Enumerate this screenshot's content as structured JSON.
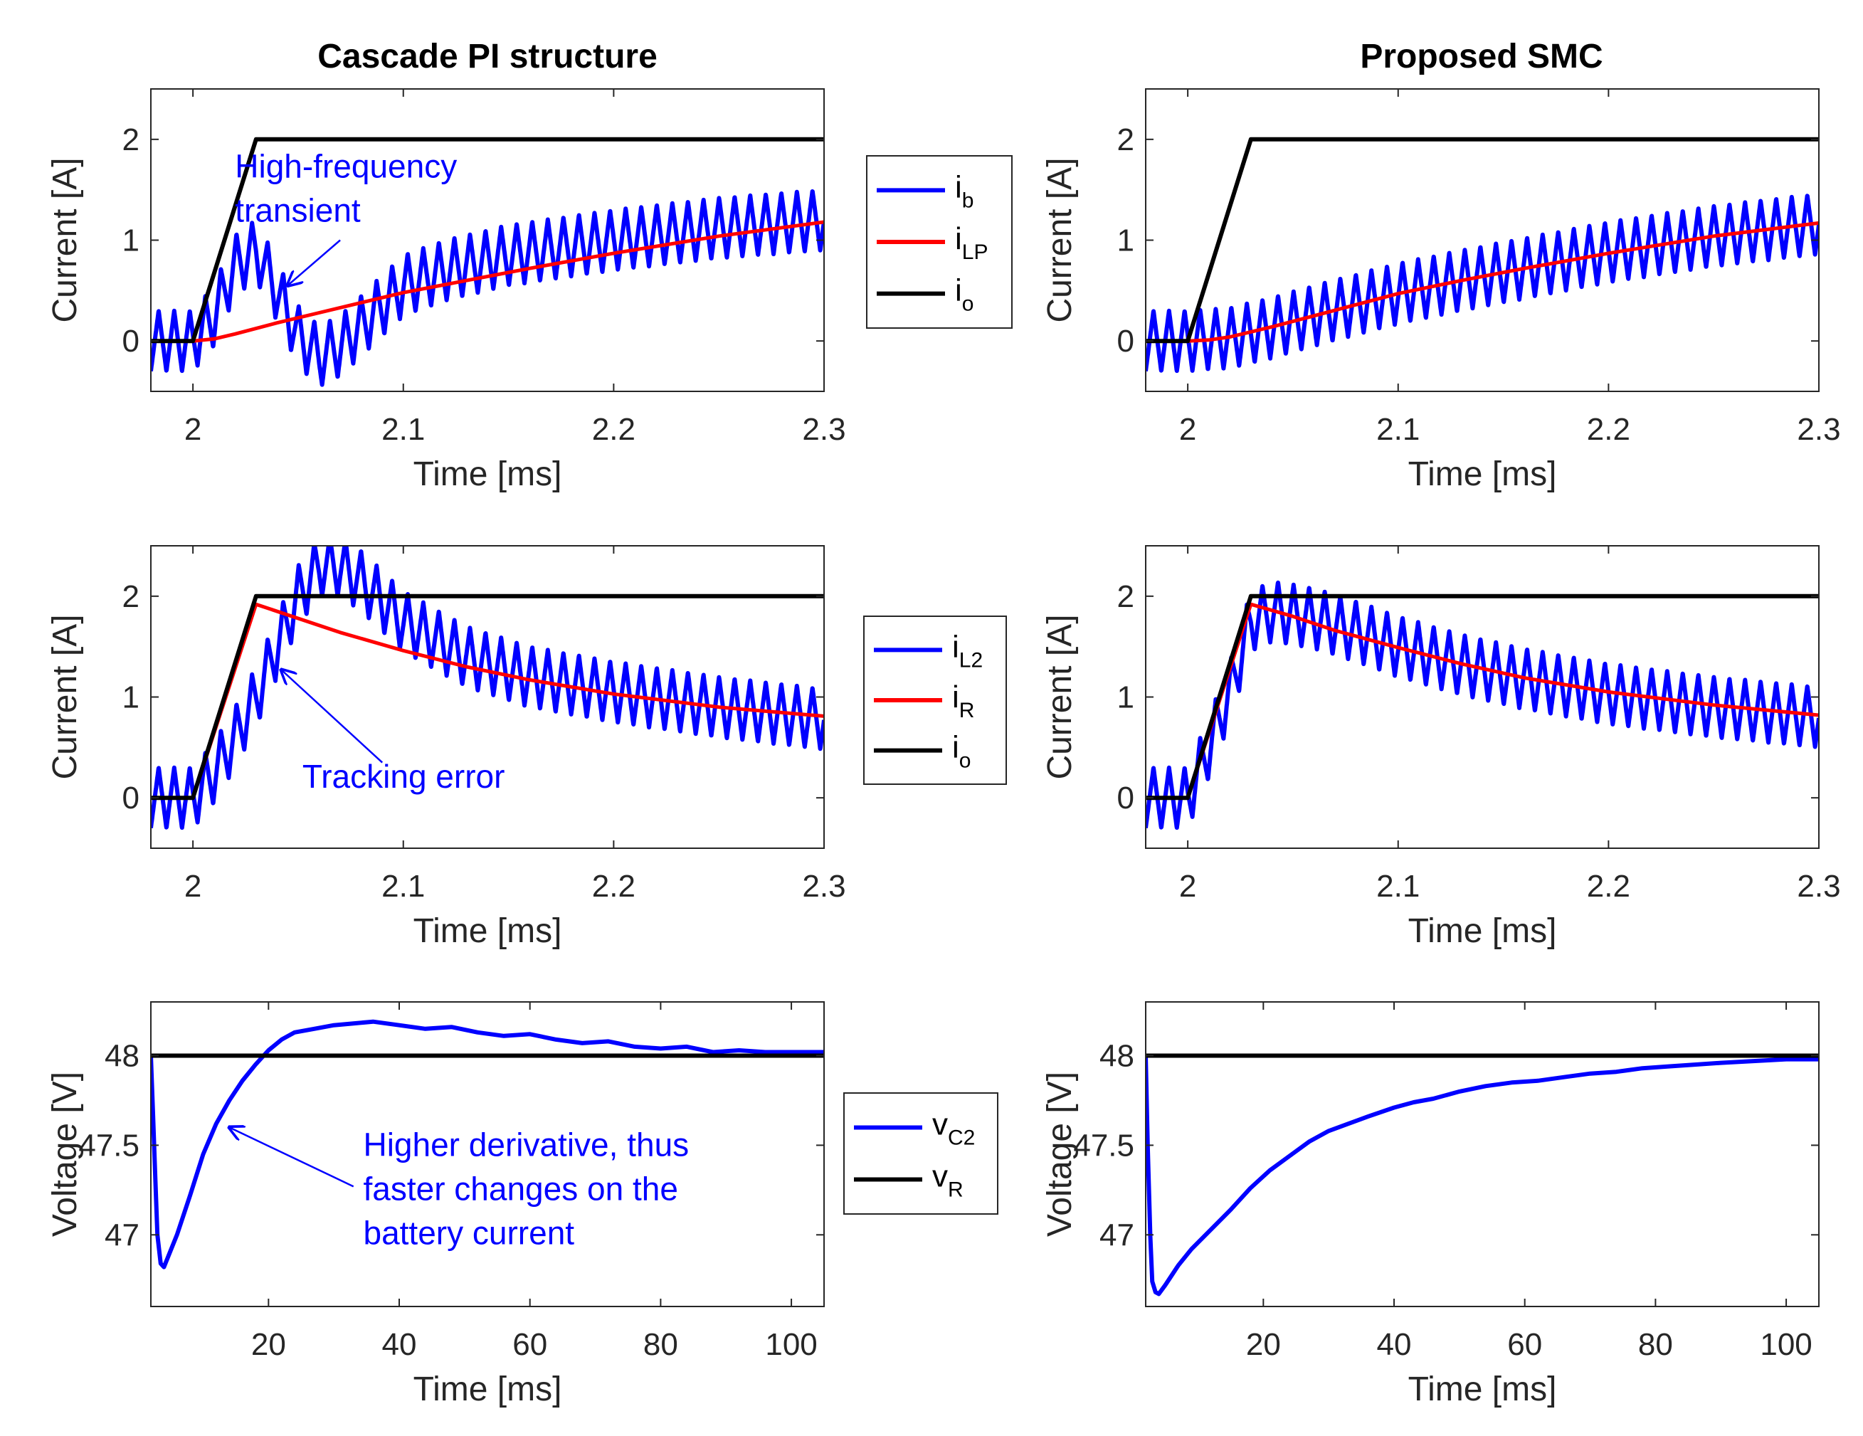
{
  "figure": {
    "title_left": "Cascade PI structure",
    "title_right": "Proposed SMC"
  },
  "colors": {
    "blue": "#0000ff",
    "red": "#ff0000",
    "black": "#000000",
    "axis": "#262626"
  },
  "chart_data": [
    {
      "id": "pi-battery",
      "type": "line",
      "panel": "top-left",
      "xlabel": "Time [ms]",
      "ylabel": "Current [A]",
      "xlim": [
        1.98,
        2.3
      ],
      "ylim": [
        -0.5,
        2.5
      ],
      "xticks": [
        2,
        2.1,
        2.2,
        2.3
      ],
      "xtick_labels": [
        "2",
        "2.1",
        "2.2",
        "2.3"
      ],
      "yticks": [
        0,
        1,
        2
      ],
      "ytick_labels": [
        "0",
        "1",
        "2"
      ],
      "series": [
        {
          "name": "i_b",
          "color": "blue",
          "kind": "ripple",
          "x": [
            1.98,
            2.0,
            2.01,
            2.02,
            2.03,
            2.04,
            2.05,
            2.06,
            2.07,
            2.08,
            2.09,
            2.1,
            2.12,
            2.15,
            2.2,
            2.25,
            2.3
          ],
          "y": [
            0.0,
            0.0,
            0.25,
            0.75,
            0.9,
            0.5,
            0.05,
            -0.15,
            -0.05,
            0.15,
            0.35,
            0.55,
            0.7,
            0.85,
            1.0,
            1.12,
            1.2
          ],
          "period": 0.0074,
          "amplitude": 0.3
        },
        {
          "name": "i_LP",
          "color": "red",
          "x": [
            2.0,
            2.01,
            2.02,
            2.04,
            2.06,
            2.08,
            2.1,
            2.13,
            2.16,
            2.2,
            2.25,
            2.3
          ],
          "y": [
            0.0,
            0.02,
            0.07,
            0.18,
            0.28,
            0.38,
            0.48,
            0.6,
            0.72,
            0.87,
            1.04,
            1.18
          ]
        },
        {
          "name": "i_o",
          "color": "black",
          "x": [
            1.98,
            2.0,
            2.03,
            2.3
          ],
          "y": [
            0,
            0,
            2,
            2
          ]
        }
      ],
      "legend": {
        "position": "right",
        "entries": [
          {
            "color": "blue",
            "base": "i",
            "sub": "b"
          },
          {
            "color": "red",
            "base": "i",
            "sub": "LP"
          },
          {
            "color": "black",
            "base": "i",
            "sub": "o"
          }
        ]
      },
      "annotations": [
        {
          "lines": [
            "High-frequency",
            "transient"
          ],
          "text_x": 2.02,
          "text_y": 1.62,
          "arrow_from": [
            2.07,
            1.0
          ],
          "arrow_to": [
            2.045,
            0.55
          ]
        }
      ]
    },
    {
      "id": "pi-inductor",
      "type": "line",
      "panel": "middle-left",
      "xlabel": "Time [ms]",
      "ylabel": "Current [A]",
      "xlim": [
        1.98,
        2.3
      ],
      "ylim": [
        -0.5,
        2.5
      ],
      "xticks": [
        2,
        2.1,
        2.2,
        2.3
      ],
      "xtick_labels": [
        "2",
        "2.1",
        "2.2",
        "2.3"
      ],
      "yticks": [
        0,
        1,
        2
      ],
      "ytick_labels": [
        "0",
        "1",
        "2"
      ],
      "series": [
        {
          "name": "i_L2",
          "color": "blue",
          "kind": "ripple",
          "x": [
            1.98,
            2.0,
            2.01,
            2.02,
            2.03,
            2.04,
            2.05,
            2.06,
            2.07,
            2.08,
            2.1,
            2.13,
            2.16,
            2.2,
            2.25,
            2.3
          ],
          "y": [
            0.0,
            0.0,
            0.25,
            0.6,
            1.0,
            1.5,
            2.0,
            2.3,
            2.3,
            2.15,
            1.75,
            1.4,
            1.2,
            1.05,
            0.9,
            0.78
          ],
          "period": 0.0074,
          "amplitude": 0.3
        },
        {
          "name": "i_R",
          "color": "red",
          "x": [
            2.0,
            2.03,
            2.05,
            2.07,
            2.1,
            2.13,
            2.16,
            2.2,
            2.25,
            2.3
          ],
          "y": [
            0.0,
            1.92,
            1.78,
            1.64,
            1.46,
            1.3,
            1.17,
            1.03,
            0.9,
            0.81
          ]
        },
        {
          "name": "i_o",
          "color": "black",
          "x": [
            1.98,
            2.0,
            2.03,
            2.3
          ],
          "y": [
            0,
            0,
            2,
            2
          ]
        }
      ],
      "legend": {
        "position": "right",
        "entries": [
          {
            "color": "blue",
            "base": "i",
            "sub": "L2"
          },
          {
            "color": "red",
            "base": "i",
            "sub": "R"
          },
          {
            "color": "black",
            "base": "i",
            "sub": "o"
          }
        ]
      },
      "annotations": [
        {
          "lines": [
            "Tracking error"
          ],
          "text_x": 2.052,
          "text_y": 0.1,
          "arrow_from": [
            2.09,
            0.35
          ],
          "arrow_to": [
            2.042,
            1.27
          ]
        }
      ]
    },
    {
      "id": "pi-voltage",
      "type": "line",
      "panel": "bottom-left",
      "xlabel": "Time [ms]",
      "ylabel": "Voltage [V]",
      "xlim": [
        2,
        105
      ],
      "ylim": [
        46.6,
        48.3
      ],
      "xticks": [
        20,
        40,
        60,
        80,
        100
      ],
      "xtick_labels": [
        "20",
        "40",
        "60",
        "80",
        "100"
      ],
      "yticks": [
        47,
        47.5,
        48
      ],
      "ytick_labels": [
        "47",
        "47.5",
        "48"
      ],
      "series": [
        {
          "name": "v_C2",
          "color": "blue",
          "x": [
            2,
            2.3,
            2.7,
            3,
            3.5,
            4,
            6,
            8,
            10,
            12,
            14,
            16,
            18,
            20,
            22,
            24,
            27,
            30,
            33,
            36,
            40,
            44,
            48,
            52,
            56,
            60,
            64,
            68,
            72,
            76,
            80,
            84,
            88,
            92,
            96,
            100,
            105
          ],
          "y": [
            48.0,
            47.7,
            47.3,
            47.0,
            46.84,
            46.82,
            47.0,
            47.22,
            47.45,
            47.62,
            47.75,
            47.86,
            47.95,
            48.03,
            48.09,
            48.13,
            48.15,
            48.17,
            48.18,
            48.19,
            48.17,
            48.15,
            48.16,
            48.13,
            48.11,
            48.12,
            48.09,
            48.07,
            48.08,
            48.05,
            48.04,
            48.05,
            48.02,
            48.03,
            48.02,
            48.02,
            48.02
          ]
        },
        {
          "name": "v_R",
          "color": "black",
          "x": [
            2,
            105
          ],
          "y": [
            48,
            48
          ]
        }
      ],
      "legend": {
        "position": "right",
        "entries": [
          {
            "color": "blue",
            "base": "v",
            "sub": "C2"
          },
          {
            "color": "black",
            "base": "v",
            "sub": "R"
          }
        ]
      },
      "annotations": [
        {
          "lines": [
            "Higher derivative, thus",
            "faster changes on the",
            "battery current"
          ],
          "text_x": 34.5,
          "text_y": 47.44,
          "arrow_from": [
            33,
            47.27
          ],
          "arrow_to": [
            14,
            47.6
          ]
        }
      ]
    },
    {
      "id": "smc-battery",
      "type": "line",
      "panel": "top-right",
      "xlabel": "Time [ms]",
      "ylabel": "Current [A]",
      "xlim": [
        1.98,
        2.3
      ],
      "ylim": [
        -0.5,
        2.5
      ],
      "xticks": [
        2,
        2.1,
        2.2,
        2.3
      ],
      "xtick_labels": [
        "2",
        "2.1",
        "2.2",
        "2.3"
      ],
      "yticks": [
        0,
        1,
        2
      ],
      "ytick_labels": [
        "0",
        "1",
        "2"
      ],
      "series": [
        {
          "name": "i_b",
          "color": "blue",
          "kind": "ripple",
          "x": [
            1.98,
            2.0,
            2.02,
            2.04,
            2.06,
            2.08,
            2.1,
            2.13,
            2.16,
            2.2,
            2.25,
            2.3
          ],
          "y": [
            0.0,
            0.0,
            0.03,
            0.13,
            0.25,
            0.36,
            0.47,
            0.6,
            0.72,
            0.88,
            1.04,
            1.16
          ],
          "period": 0.0074,
          "amplitude": 0.3
        },
        {
          "name": "i_LP",
          "color": "red",
          "x": [
            2.0,
            2.01,
            2.02,
            2.04,
            2.06,
            2.08,
            2.1,
            2.13,
            2.16,
            2.2,
            2.25,
            2.3
          ],
          "y": [
            0.0,
            0.01,
            0.04,
            0.14,
            0.25,
            0.36,
            0.47,
            0.6,
            0.72,
            0.87,
            1.04,
            1.17
          ]
        },
        {
          "name": "i_o",
          "color": "black",
          "x": [
            1.98,
            2.0,
            2.03,
            2.3
          ],
          "y": [
            0,
            0,
            2,
            2
          ]
        }
      ]
    },
    {
      "id": "smc-inductor",
      "type": "line",
      "panel": "middle-right",
      "xlabel": "Time [ms]",
      "ylabel": "Current [A]",
      "xlim": [
        1.98,
        2.3
      ],
      "ylim": [
        -0.5,
        2.5
      ],
      "xticks": [
        2,
        2.1,
        2.2,
        2.3
      ],
      "xtick_labels": [
        "2",
        "2.1",
        "2.2",
        "2.3"
      ],
      "yticks": [
        0,
        1,
        2
      ],
      "ytick_labels": [
        "0",
        "1",
        "2"
      ],
      "series": [
        {
          "name": "i_L2",
          "color": "blue",
          "kind": "ripple",
          "x": [
            1.98,
            2.0,
            2.01,
            2.02,
            2.03,
            2.04,
            2.06,
            2.08,
            2.1,
            2.13,
            2.16,
            2.2,
            2.25,
            2.3
          ],
          "y": [
            0.0,
            0.0,
            0.5,
            1.05,
            1.75,
            1.85,
            1.78,
            1.65,
            1.5,
            1.32,
            1.18,
            1.03,
            0.9,
            0.8
          ],
          "period": 0.0074,
          "amplitude": 0.3
        },
        {
          "name": "i_R",
          "color": "red",
          "x": [
            2.0,
            2.03,
            2.05,
            2.07,
            2.1,
            2.13,
            2.16,
            2.2,
            2.25,
            2.3
          ],
          "y": [
            0.0,
            1.92,
            1.8,
            1.66,
            1.49,
            1.33,
            1.19,
            1.05,
            0.92,
            0.82
          ]
        },
        {
          "name": "i_o",
          "color": "black",
          "x": [
            1.98,
            2.0,
            2.03,
            2.3
          ],
          "y": [
            0,
            0,
            2,
            2
          ]
        }
      ]
    },
    {
      "id": "smc-voltage",
      "type": "line",
      "panel": "bottom-right",
      "xlabel": "Time [ms]",
      "ylabel": "Voltage [V]",
      "xlim": [
        2,
        105
      ],
      "ylim": [
        46.6,
        48.3
      ],
      "xticks": [
        20,
        40,
        60,
        80,
        100
      ],
      "xtick_labels": [
        "20",
        "40",
        "60",
        "80",
        "100"
      ],
      "yticks": [
        47,
        47.5,
        48
      ],
      "ytick_labels": [
        "47",
        "47.5",
        "48"
      ],
      "series": [
        {
          "name": "v_C2",
          "color": "blue",
          "x": [
            2,
            2.3,
            2.7,
            3,
            3.5,
            4,
            5,
            7,
            9,
            12,
            15,
            18,
            21,
            24,
            27,
            30,
            33,
            36,
            40,
            43,
            46,
            50,
            54,
            58,
            62,
            66,
            70,
            74,
            78,
            82,
            86,
            90,
            95,
            100,
            105
          ],
          "y": [
            48.0,
            47.5,
            47.0,
            46.74,
            46.68,
            46.67,
            46.72,
            46.83,
            46.92,
            47.03,
            47.14,
            47.26,
            47.36,
            47.44,
            47.52,
            47.58,
            47.62,
            47.66,
            47.71,
            47.74,
            47.76,
            47.8,
            47.83,
            47.85,
            47.86,
            47.88,
            47.9,
            47.91,
            47.93,
            47.94,
            47.95,
            47.96,
            47.97,
            47.98,
            47.98
          ]
        },
        {
          "name": "v_R",
          "color": "black",
          "x": [
            2,
            105
          ],
          "y": [
            48,
            48
          ]
        }
      ]
    }
  ]
}
